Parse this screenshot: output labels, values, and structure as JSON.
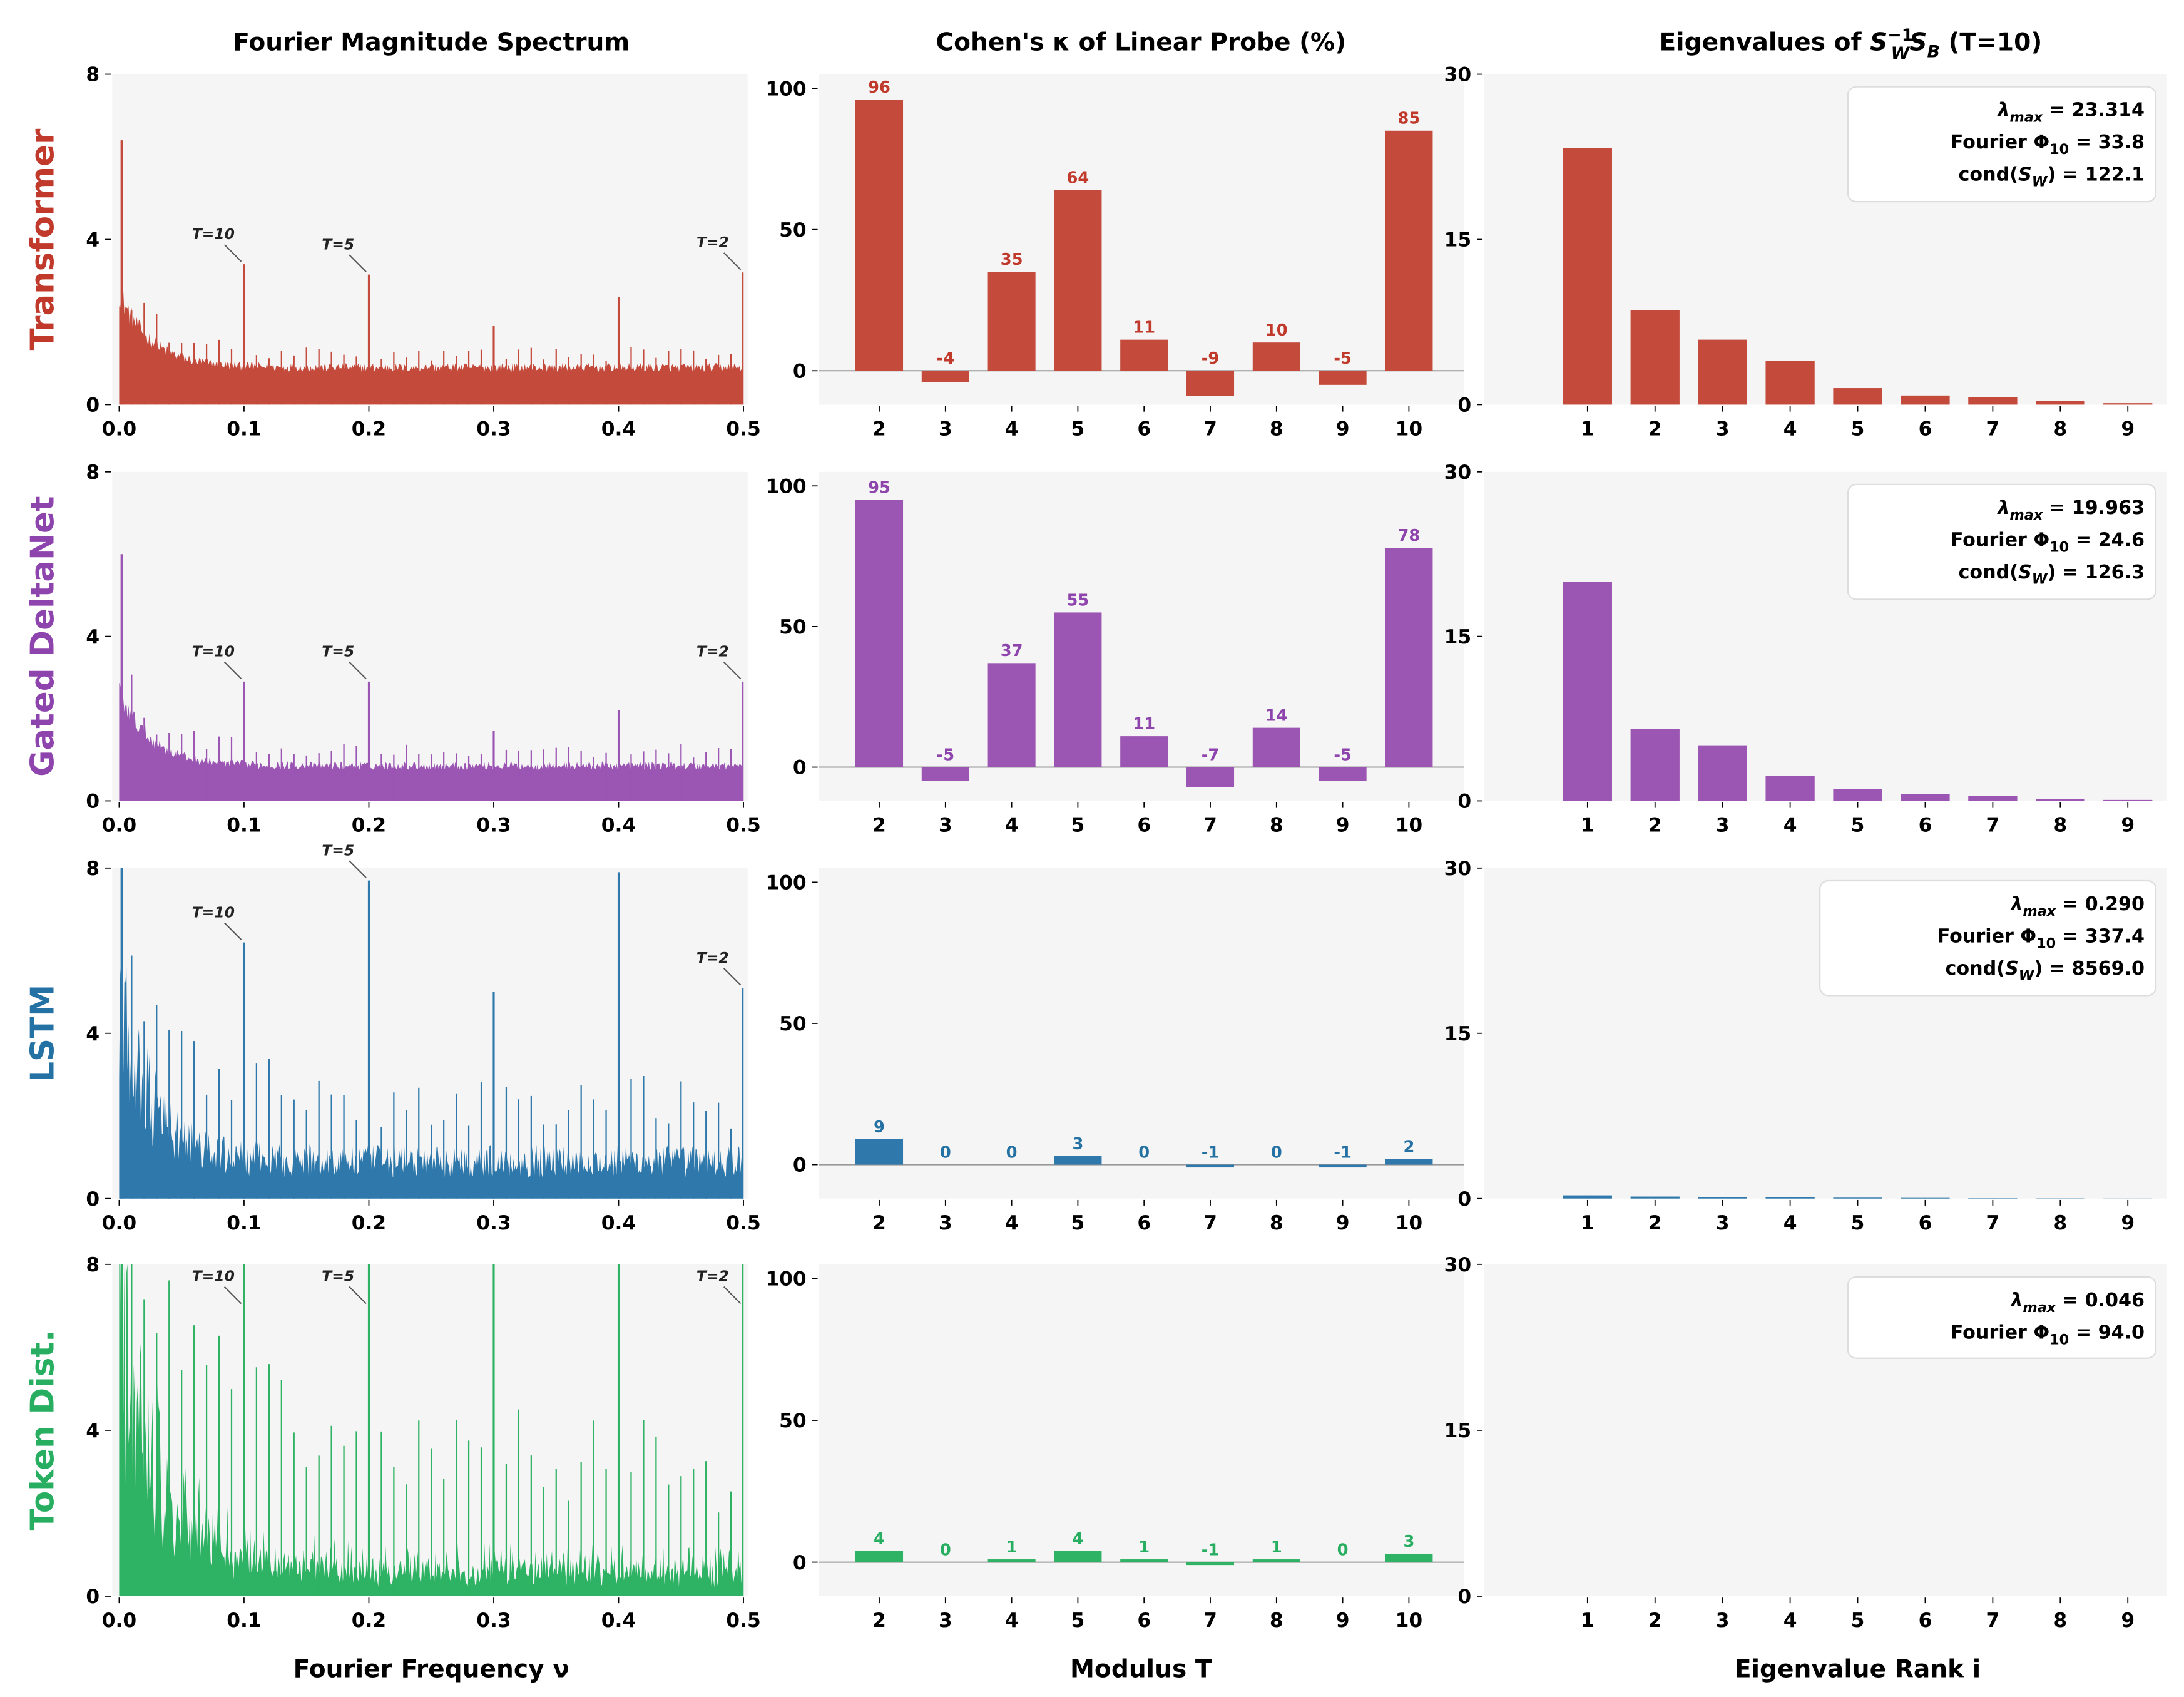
{
  "figure": {
    "titles": {
      "spectrum": "Fourier Magnitude Spectrum",
      "kappa": "Cohen's κ of Linear Probe (%)",
      "eigen": {
        "pre": "Eigenvalues of ",
        "s1": "S",
        "sub1": "W",
        "sup": "−1",
        "s2": "S",
        "sub2": "B",
        "post": "  (T=10)"
      }
    },
    "xlabels": {
      "spectrum": "Fourier Frequency ν",
      "kappa": "Modulus T",
      "eigen": "Eigenvalue Rank i"
    },
    "box_labels": {
      "lambda": "λ",
      "lambda_sub": "max",
      "fourier": "Fourier Φ",
      "fourier_sub": "10",
      "cond_pre": "cond(",
      "cond_s": "S",
      "cond_sub": "W",
      "cond_post": ")",
      "eq": " = "
    }
  },
  "rows": [
    {
      "label": "Transformer",
      "color": "#c0392b",
      "bar_color": "#c44a3c",
      "lambda_max": "23.314",
      "fourier_phi10": "33.8",
      "cond_sw": "122.1"
    },
    {
      "label": "Gated DeltaNet",
      "color": "#8e44ad",
      "bar_color": "#9b55b3",
      "lambda_max": "19.963",
      "fourier_phi10": "24.6",
      "cond_sw": "126.3"
    },
    {
      "label": "LSTM",
      "color": "#2471a3",
      "bar_color": "#2e78ab",
      "lambda_max": "0.290",
      "fourier_phi10": "337.4",
      "cond_sw": "8569.0"
    },
    {
      "label": "Token Dist.",
      "color": "#27ae60",
      "bar_color": "#2eb263",
      "lambda_max": "0.046",
      "fourier_phi10": "94.0"
    }
  ],
  "chart_data": [
    {
      "type": "area",
      "panel": "spectrum",
      "model": "Transformer",
      "xlim": [
        0,
        0.5
      ],
      "ylim": [
        0,
        8
      ],
      "xticks": [
        "0.0",
        "0.1",
        "0.2",
        "0.3",
        "0.4",
        "0.5"
      ],
      "yticks": [
        "0",
        "4",
        "8"
      ],
      "dc_peak": 6.4,
      "noise_floor": 1.0,
      "peaks": [
        {
          "x": 0.1,
          "y": 3.4,
          "label": "T=10"
        },
        {
          "x": 0.2,
          "y": 3.15,
          "label": "T=5"
        },
        {
          "x": 0.3,
          "y": 1.9
        },
        {
          "x": 0.4,
          "y": 2.6
        },
        {
          "x": 0.5,
          "y": 3.2,
          "label": "T=2"
        }
      ]
    },
    {
      "type": "area",
      "panel": "spectrum",
      "model": "Gated DeltaNet",
      "xlim": [
        0,
        0.5
      ],
      "ylim": [
        0,
        8
      ],
      "xticks": [
        "0.0",
        "0.1",
        "0.2",
        "0.3",
        "0.4",
        "0.5"
      ],
      "yticks": [
        "0",
        "4",
        "8"
      ],
      "dc_peak": 6.0,
      "noise_floor": 0.95,
      "peaks": [
        {
          "x": 0.1,
          "y": 2.9,
          "label": "T=10"
        },
        {
          "x": 0.2,
          "y": 2.9,
          "label": "T=5"
        },
        {
          "x": 0.3,
          "y": 1.7
        },
        {
          "x": 0.4,
          "y": 2.2
        },
        {
          "x": 0.5,
          "y": 2.9,
          "label": "T=2"
        }
      ]
    },
    {
      "type": "area",
      "panel": "spectrum",
      "model": "LSTM",
      "xlim": [
        0,
        0.5
      ],
      "ylim": [
        0,
        8
      ],
      "xticks": [
        "0.0",
        "0.1",
        "0.2",
        "0.3",
        "0.4",
        "0.5"
      ],
      "yticks": [
        "0",
        "4",
        "8"
      ],
      "dc_peak": 8,
      "noise_floor": 1.0,
      "peaks": [
        {
          "x": 0.1,
          "y": 6.2,
          "label": "T=10"
        },
        {
          "x": 0.2,
          "y": 7.7,
          "label": "T=5"
        },
        {
          "x": 0.3,
          "y": 5.0
        },
        {
          "x": 0.4,
          "y": 7.9
        },
        {
          "x": 0.5,
          "y": 5.1,
          "label": "T=2"
        }
      ]
    },
    {
      "type": "area",
      "panel": "spectrum",
      "model": "Token Dist.",
      "xlim": [
        0,
        0.5
      ],
      "ylim": [
        0,
        8
      ],
      "xticks": [
        "0.0",
        "0.1",
        "0.2",
        "0.3",
        "0.4",
        "0.5"
      ],
      "yticks": [
        "0",
        "4",
        "8"
      ],
      "dc_peak": 8,
      "noise_floor": 1.0,
      "peaks": [
        {
          "x": 0.1,
          "y": 8,
          "label": "T=10"
        },
        {
          "x": 0.2,
          "y": 8,
          "label": "T=5"
        },
        {
          "x": 0.3,
          "y": 8
        },
        {
          "x": 0.4,
          "y": 8
        },
        {
          "x": 0.5,
          "y": 8,
          "label": "T=2"
        }
      ]
    },
    {
      "type": "bar",
      "panel": "kappa",
      "model": "Transformer",
      "categories": [
        "2",
        "3",
        "4",
        "5",
        "6",
        "7",
        "8",
        "9",
        "10"
      ],
      "values": [
        96,
        -4,
        35,
        64,
        11,
        -9,
        10,
        -5,
        85
      ],
      "ylim": [
        -12,
        105
      ],
      "yticks": [
        "0",
        "50",
        "100"
      ]
    },
    {
      "type": "bar",
      "panel": "kappa",
      "model": "Gated DeltaNet",
      "categories": [
        "2",
        "3",
        "4",
        "5",
        "6",
        "7",
        "8",
        "9",
        "10"
      ],
      "values": [
        95,
        -5,
        37,
        55,
        11,
        -7,
        14,
        -5,
        78
      ],
      "ylim": [
        -12,
        105
      ],
      "yticks": [
        "0",
        "50",
        "100"
      ]
    },
    {
      "type": "bar",
      "panel": "kappa",
      "model": "LSTM",
      "categories": [
        "2",
        "3",
        "4",
        "5",
        "6",
        "7",
        "8",
        "9",
        "10"
      ],
      "values": [
        9,
        0,
        0,
        3,
        0,
        -1,
        0,
        -1,
        2
      ],
      "ylim": [
        -12,
        105
      ],
      "yticks": [
        "0",
        "50",
        "100"
      ]
    },
    {
      "type": "bar",
      "panel": "kappa",
      "model": "Token Dist.",
      "categories": [
        "2",
        "3",
        "4",
        "5",
        "6",
        "7",
        "8",
        "9",
        "10"
      ],
      "values": [
        4,
        0,
        1,
        4,
        1,
        -1,
        1,
        0,
        3
      ],
      "ylim": [
        -12,
        105
      ],
      "yticks": [
        "0",
        "50",
        "100"
      ]
    },
    {
      "type": "bar",
      "panel": "eigen",
      "model": "Transformer",
      "categories": [
        "1",
        "2",
        "3",
        "4",
        "5",
        "6",
        "7",
        "8",
        "9"
      ],
      "values": [
        23.3,
        8.55,
        5.9,
        4.0,
        1.5,
        0.83,
        0.7,
        0.35,
        0.13
      ],
      "ylim": [
        0,
        30
      ],
      "yticks": [
        "0",
        "15",
        "30"
      ]
    },
    {
      "type": "bar",
      "panel": "eigen",
      "model": "Gated DeltaNet",
      "categories": [
        "1",
        "2",
        "3",
        "4",
        "5",
        "6",
        "7",
        "8",
        "9"
      ],
      "values": [
        19.96,
        6.55,
        5.07,
        2.3,
        1.1,
        0.65,
        0.44,
        0.17,
        0.09
      ],
      "ylim": [
        0,
        30
      ],
      "yticks": [
        "0",
        "15",
        "30"
      ]
    },
    {
      "type": "bar",
      "panel": "eigen",
      "model": "LSTM",
      "categories": [
        "1",
        "2",
        "3",
        "4",
        "5",
        "6",
        "7",
        "8",
        "9"
      ],
      "values": [
        0.29,
        0.18,
        0.15,
        0.12,
        0.08,
        0.06,
        0.03,
        0.02,
        0.01
      ],
      "ylim": [
        0,
        30
      ],
      "yticks": [
        "0",
        "15",
        "30"
      ]
    },
    {
      "type": "bar",
      "panel": "eigen",
      "model": "Token Dist.",
      "categories": [
        "1",
        "2",
        "3",
        "4",
        "5",
        "6",
        "7",
        "8",
        "9"
      ],
      "values": [
        0.046,
        0.03,
        0.02,
        0.015,
        0.01,
        0.008,
        0.005,
        0.003,
        0.001
      ],
      "ylim": [
        0,
        30
      ],
      "yticks": [
        "0",
        "15",
        "30"
      ]
    }
  ]
}
